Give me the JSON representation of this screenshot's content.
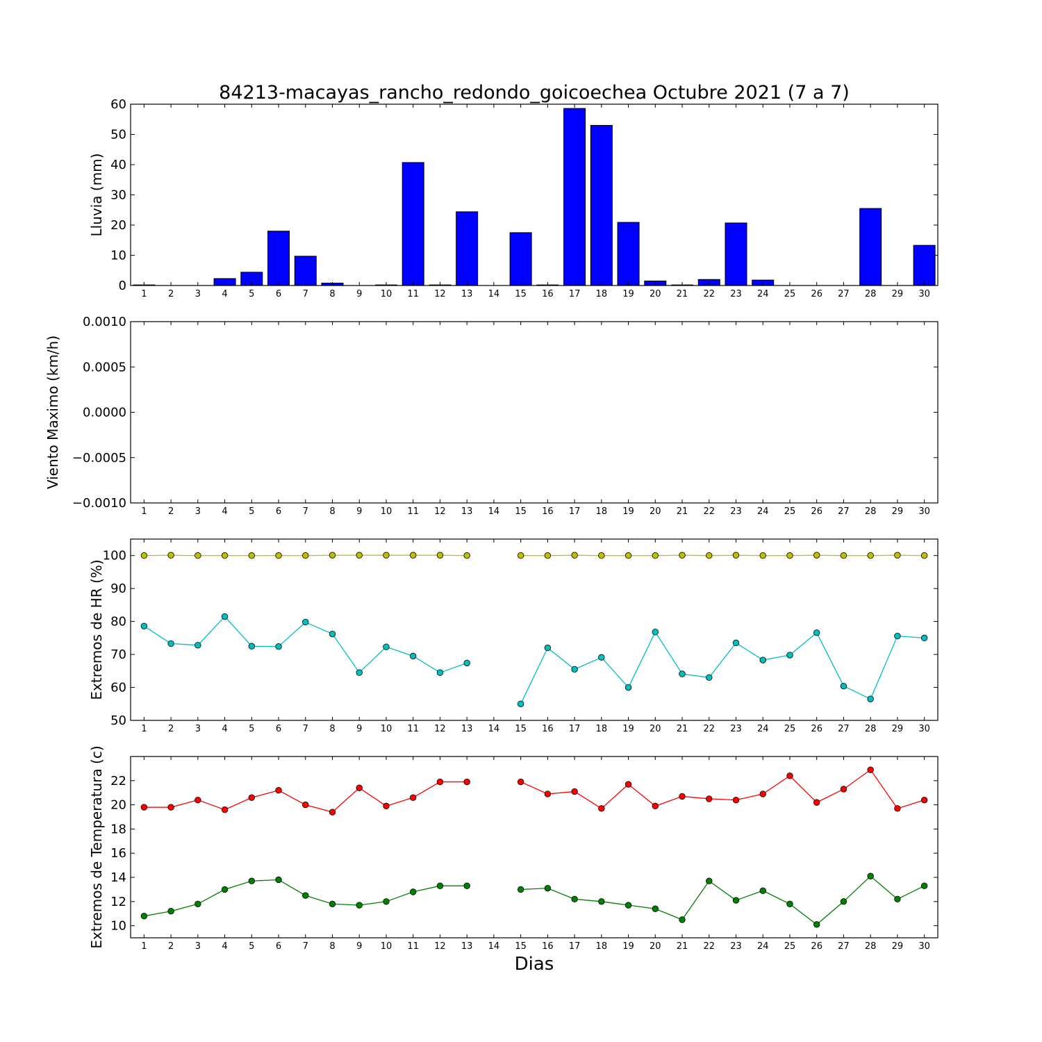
{
  "title": "84213-macayas_rancho_redondo_goicoechea Octubre 2021  (7 a 7)",
  "xlabel": "Dias",
  "chart_data": [
    {
      "type": "bar",
      "ylabel": "Lluvia (mm)",
      "ylim": [
        0,
        60
      ],
      "yticks": [
        0,
        10,
        20,
        30,
        40,
        50,
        60
      ],
      "xticks": [
        1,
        2,
        3,
        4,
        5,
        6,
        7,
        8,
        9,
        10,
        11,
        12,
        13,
        14,
        15,
        16,
        17,
        18,
        19,
        20,
        21,
        22,
        23,
        24,
        25,
        26,
        27,
        28,
        29,
        30
      ],
      "categories": [
        1,
        2,
        3,
        4,
        5,
        6,
        7,
        8,
        9,
        10,
        11,
        12,
        13,
        14,
        15,
        16,
        17,
        18,
        19,
        20,
        21,
        22,
        23,
        24,
        25,
        26,
        27,
        28,
        29,
        30
      ],
      "values": [
        0.2,
        0,
        0,
        2.3,
        4.4,
        18,
        9.7,
        0.8,
        0,
        0.2,
        40.7,
        0.2,
        24.4,
        0,
        17.5,
        0.2,
        58.6,
        53,
        20.9,
        1.5,
        0.2,
        2,
        20.7,
        1.8,
        0,
        0,
        0,
        25.5,
        0,
        13.3
      ],
      "color": "#0000ff"
    },
    {
      "type": "line",
      "ylabel": "Viento Maximo (km/h)",
      "ylim": [
        -0.001,
        0.001
      ],
      "yticks": [
        "−0.0010",
        "−0.0005",
        "0.0000",
        "0.0005",
        "0.0010"
      ],
      "xticks": [
        1,
        2,
        3,
        4,
        5,
        6,
        7,
        8,
        9,
        10,
        11,
        12,
        13,
        14,
        15,
        16,
        17,
        18,
        19,
        20,
        21,
        22,
        23,
        24,
        25,
        26,
        27,
        28,
        29,
        30
      ],
      "series": []
    },
    {
      "type": "line",
      "ylabel": "Extremos de HR (%)",
      "ylim": [
        50,
        105
      ],
      "yticks": [
        50,
        60,
        70,
        80,
        90,
        100
      ],
      "xticks": [
        1,
        2,
        3,
        4,
        5,
        6,
        7,
        8,
        9,
        10,
        11,
        12,
        13,
        14,
        15,
        16,
        17,
        18,
        19,
        20,
        21,
        22,
        23,
        24,
        25,
        26,
        27,
        28,
        29,
        30
      ],
      "x": [
        1,
        2,
        3,
        4,
        5,
        6,
        7,
        8,
        9,
        10,
        11,
        12,
        13,
        14,
        15,
        16,
        17,
        18,
        19,
        20,
        21,
        22,
        23,
        24,
        25,
        26,
        27,
        28,
        29,
        30
      ],
      "series": [
        {
          "color": "#bfbf00",
          "values": [
            100,
            100.1,
            100,
            100,
            100,
            100,
            100,
            100.1,
            100.1,
            100.1,
            100.1,
            100.1,
            100,
            null,
            100,
            100,
            100.1,
            100,
            100,
            100,
            100.1,
            100,
            100.1,
            100,
            100,
            100.1,
            100,
            100,
            100.1,
            100
          ]
        },
        {
          "color": "#00bfbf",
          "values": [
            78.6,
            73.3,
            72.8,
            81.5,
            72.5,
            72.4,
            79.8,
            76.2,
            64.5,
            72.3,
            69.5,
            64.5,
            67.4,
            null,
            55,
            72,
            65.5,
            69.1,
            60,
            76.8,
            64.1,
            63,
            73.5,
            68.3,
            69.8,
            76.6,
            60.4,
            56.5,
            75.6,
            75
          ]
        }
      ]
    },
    {
      "type": "line",
      "ylabel": "Extremos de Temperatura (c)",
      "ylim": [
        9,
        24
      ],
      "yticks": [
        10,
        12,
        14,
        16,
        18,
        20,
        22
      ],
      "xticks": [
        1,
        2,
        3,
        4,
        5,
        6,
        7,
        8,
        9,
        10,
        11,
        12,
        13,
        14,
        15,
        16,
        17,
        18,
        19,
        20,
        21,
        22,
        23,
        24,
        25,
        26,
        27,
        28,
        29,
        30
      ],
      "x": [
        1,
        2,
        3,
        4,
        5,
        6,
        7,
        8,
        9,
        10,
        11,
        12,
        13,
        14,
        15,
        16,
        17,
        18,
        19,
        20,
        21,
        22,
        23,
        24,
        25,
        26,
        27,
        28,
        29,
        30
      ],
      "series": [
        {
          "color": "#ff0000",
          "values": [
            19.8,
            19.8,
            20.4,
            19.6,
            20.6,
            21.2,
            20,
            19.4,
            21.4,
            19.9,
            20.6,
            21.9,
            21.9,
            null,
            21.9,
            20.9,
            21.1,
            19.7,
            21.7,
            19.9,
            20.7,
            20.5,
            20.4,
            20.9,
            22.4,
            20.2,
            21.3,
            22.9,
            19.7,
            20.4
          ]
        },
        {
          "color": "#008000",
          "values": [
            10.8,
            11.2,
            11.8,
            13,
            13.7,
            13.8,
            12.5,
            11.8,
            11.7,
            12,
            12.8,
            13.3,
            13.3,
            null,
            13,
            13.1,
            12.2,
            12,
            11.7,
            11.4,
            10.5,
            13.7,
            12.1,
            12.9,
            11.8,
            10.1,
            12,
            14.1,
            12.2,
            13.3
          ]
        }
      ]
    }
  ]
}
